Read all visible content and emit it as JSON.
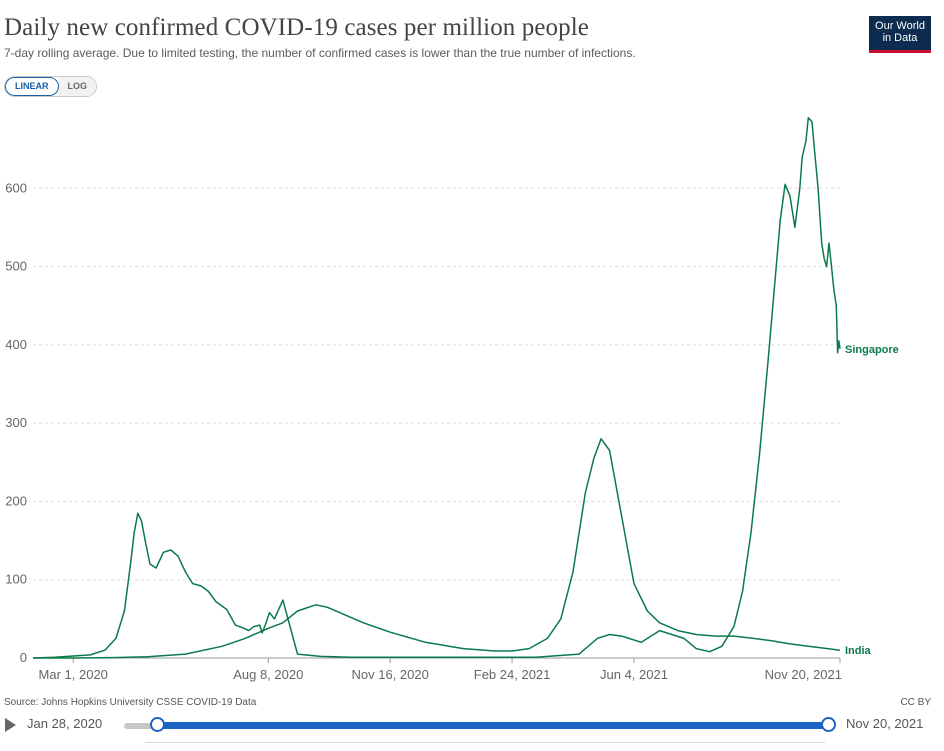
{
  "header": {
    "title": "Daily new confirmed COVID-19 cases per million people",
    "subtitle": "7-day rolling average. Due to limited testing, the number of confirmed cases is lower than the true number of infections.",
    "logo_line1": "Our World",
    "logo_line2": "in Data"
  },
  "scale_toggle": {
    "options": [
      "LINEAR",
      "LOG"
    ],
    "selected": "LINEAR"
  },
  "footer": {
    "source": "Source: Johns Hopkins University CSSE COVID-19 Data",
    "license": "CC BY"
  },
  "timeline": {
    "start_label": "Jan 28, 2020",
    "end_label": "Nov 20, 2021"
  },
  "colors": {
    "line": "#0b7a4b",
    "grid": "#dddddd",
    "accent": "#1b63c4"
  },
  "chart_data": {
    "type": "line",
    "title": "Daily new confirmed COVID-19 cases per million people",
    "subtitle": "7-day rolling average. Due to limited testing, the number of confirmed cases is lower than the true number of infections.",
    "x_ticks": [
      "Mar 1, 2020",
      "Aug 8, 2020",
      "Nov 16, 2020",
      "Feb 24, 2021",
      "Jun 4, 2021",
      "Nov 20, 2021"
    ],
    "x_range": [
      "2020-01-28",
      "2021-11-20"
    ],
    "y_ticks": [
      0,
      100,
      200,
      300,
      400,
      500,
      600
    ],
    "ylim": [
      0,
      700
    ],
    "grid": true,
    "legend": "inline labels at line ends",
    "series": [
      {
        "name": "Singapore",
        "x": [
          "2020-01-28",
          "2020-02-15",
          "2020-03-15",
          "2020-03-27",
          "2020-04-05",
          "2020-04-12",
          "2020-04-17",
          "2020-04-20",
          "2020-04-23",
          "2020-04-26",
          "2020-04-29",
          "2020-05-03",
          "2020-05-08",
          "2020-05-14",
          "2020-05-20",
          "2020-05-26",
          "2020-06-01",
          "2020-06-07",
          "2020-06-14",
          "2020-06-20",
          "2020-06-26",
          "2020-07-05",
          "2020-07-12",
          "2020-07-19",
          "2020-07-23",
          "2020-07-27",
          "2020-08-01",
          "2020-08-03",
          "2020-08-06",
          "2020-08-09",
          "2020-08-13",
          "2020-08-20",
          "2020-09-01",
          "2020-09-20",
          "2020-10-15",
          "2020-12-01",
          "2021-02-01",
          "2021-03-15",
          "2021-04-20",
          "2021-05-05",
          "2021-05-15",
          "2021-05-25",
          "2021-06-10",
          "2021-06-25",
          "2021-07-05",
          "2021-07-15",
          "2021-07-25",
          "2021-08-05",
          "2021-08-15",
          "2021-08-25",
          "2021-09-01",
          "2021-09-08",
          "2021-09-15",
          "2021-09-22",
          "2021-09-27",
          "2021-10-02",
          "2021-10-06",
          "2021-10-10",
          "2021-10-14",
          "2021-10-18",
          "2021-10-20",
          "2021-10-23",
          "2021-10-25",
          "2021-10-28",
          "2021-10-30",
          "2021-11-02",
          "2021-11-05",
          "2021-11-07",
          "2021-11-09",
          "2021-11-11",
          "2021-11-13",
          "2021-11-15",
          "2021-11-17",
          "2021-11-18",
          "2021-11-19",
          "2021-11-20"
        ],
        "values": [
          0,
          1,
          4,
          10,
          25,
          60,
          120,
          160,
          185,
          175,
          150,
          120,
          115,
          135,
          138,
          130,
          110,
          95,
          92,
          85,
          72,
          62,
          42,
          38,
          35,
          40,
          42,
          32,
          44,
          58,
          50,
          74,
          5,
          2,
          1,
          1,
          1,
          1,
          5,
          25,
          30,
          28,
          20,
          35,
          30,
          25,
          12,
          8,
          15,
          40,
          85,
          160,
          260,
          380,
          470,
          560,
          605,
          590,
          550,
          600,
          640,
          660,
          690,
          685,
          650,
          600,
          530,
          510,
          500,
          530,
          500,
          470,
          450,
          390,
          405,
          395
        ]
      },
      {
        "name": "India",
        "x": [
          "2020-01-28",
          "2020-03-01",
          "2020-04-01",
          "2020-05-01",
          "2020-06-01",
          "2020-07-01",
          "2020-07-20",
          "2020-08-08",
          "2020-08-20",
          "2020-09-01",
          "2020-09-16",
          "2020-09-25",
          "2020-10-10",
          "2020-10-25",
          "2020-11-16",
          "2020-12-15",
          "2021-01-15",
          "2021-02-10",
          "2021-02-24",
          "2021-03-10",
          "2021-03-25",
          "2021-04-05",
          "2021-04-15",
          "2021-04-25",
          "2021-05-02",
          "2021-05-08",
          "2021-05-15",
          "2021-05-25",
          "2021-06-04",
          "2021-06-15",
          "2021-06-25",
          "2021-07-10",
          "2021-07-25",
          "2021-08-10",
          "2021-08-25",
          "2021-09-10",
          "2021-09-25",
          "2021-10-10",
          "2021-10-25",
          "2021-11-10",
          "2021-11-20"
        ],
        "values": [
          0,
          0,
          0.5,
          1.5,
          5,
          15,
          25,
          38,
          45,
          60,
          68,
          65,
          55,
          45,
          33,
          20,
          12,
          9,
          9,
          12,
          25,
          50,
          110,
          210,
          255,
          280,
          265,
          180,
          95,
          60,
          45,
          35,
          30,
          28,
          28,
          25,
          22,
          18,
          15,
          12,
          10
        ]
      }
    ]
  }
}
